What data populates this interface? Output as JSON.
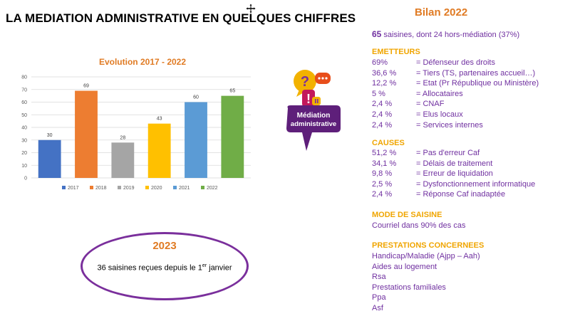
{
  "page": {
    "main_title": "LA MEDIATION ADMINISTRATIVE EN QUELQUES CHIFFRES"
  },
  "chart_data": {
    "type": "bar",
    "title": "Evolution 2017 - 2022",
    "categories": [
      "2017",
      "2018",
      "2019",
      "2020",
      "2021",
      "2022"
    ],
    "values": [
      30,
      69,
      28,
      43,
      60,
      65
    ],
    "colors": [
      "#4472c4",
      "#ed7d31",
      "#a5a5a5",
      "#ffc000",
      "#5b9bd5",
      "#70ad47"
    ],
    "ylim": [
      0,
      80
    ],
    "yticks": [
      "0",
      "10",
      "20",
      "30",
      "40",
      "50",
      "60",
      "70",
      "80"
    ],
    "grid": true,
    "legend": "bottom",
    "xlabel": "",
    "ylabel": ""
  },
  "box2023": {
    "year": "2023",
    "text_before": "36 saisines reçues depuis le 1",
    "superscript": "er",
    "text_after": " janvier"
  },
  "logo": {
    "line1": "Médiation",
    "line2": "administrative"
  },
  "bilan": {
    "title": "Bilan 2022",
    "count": "65",
    "summary_rest": " saisines, dont 24 hors-médiation (37%)",
    "emetteurs_title": "EMETTEURS",
    "emetteurs": [
      {
        "pct": "69%",
        "label": "= Défenseur des droits"
      },
      {
        "pct": "36,6 %",
        "label": "= Tiers (TS, partenaires accueil…)"
      },
      {
        "pct": "12,2 %",
        "label": "= Etat (Pr République ou Ministère)"
      },
      {
        "pct": "5 %",
        "label": "= Allocataires"
      },
      {
        "pct": "2,4 %",
        "label": "= CNAF"
      },
      {
        "pct": "2,4 %",
        "label": "= Elus locaux"
      },
      {
        "pct": "2,4 %",
        "label": "= Services internes"
      }
    ],
    "causes_title": "CAUSES",
    "causes": [
      {
        "pct": "51,2 %",
        "label": "= Pas d'erreur Caf"
      },
      {
        "pct": "34,1 %",
        "label": "= Délais de traitement"
      },
      {
        "pct": "9,8 %",
        "label": "= Erreur de liquidation"
      },
      {
        "pct": "2,5 %",
        "label": "= Dysfonctionnement informatique"
      },
      {
        "pct": "2,4 %",
        "label": "= Réponse Caf inadaptée"
      }
    ],
    "mode_title": "MODE DE SAISINE",
    "mode_text": "Courriel dans 90% des cas",
    "prestations_title": "PRESTATIONS CONCERNEES",
    "prestations": [
      "Handicap/Maladie (Ajpp – Aah)",
      "Aides au logement",
      "Rsa",
      "Prestations familiales",
      "Ppa",
      "Asf"
    ]
  }
}
